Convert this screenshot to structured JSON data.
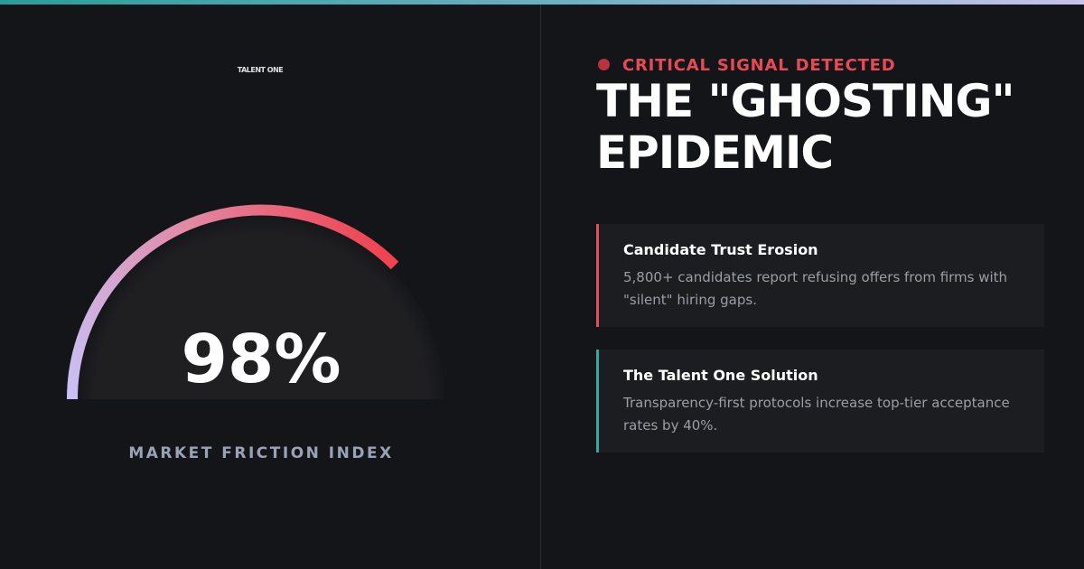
{
  "brand": "TALENT ONE",
  "gauge": {
    "value_label": "98%",
    "caption": "MARKET FRICTION INDEX"
  },
  "signal": "CRITICAL SIGNAL DETECTED",
  "title": [
    "THE \"GHOSTING\"",
    "EPIDEMIC"
  ],
  "cards": [
    {
      "title": "Candidate Trust Erosion",
      "body": "5,800+ candidates report refusing offers from firms with \"silent\" hiring gaps."
    },
    {
      "title": "The Talent One Solution",
      "body": "Transparency-first protocols increase top-tier acceptance rates by 40%."
    }
  ]
}
